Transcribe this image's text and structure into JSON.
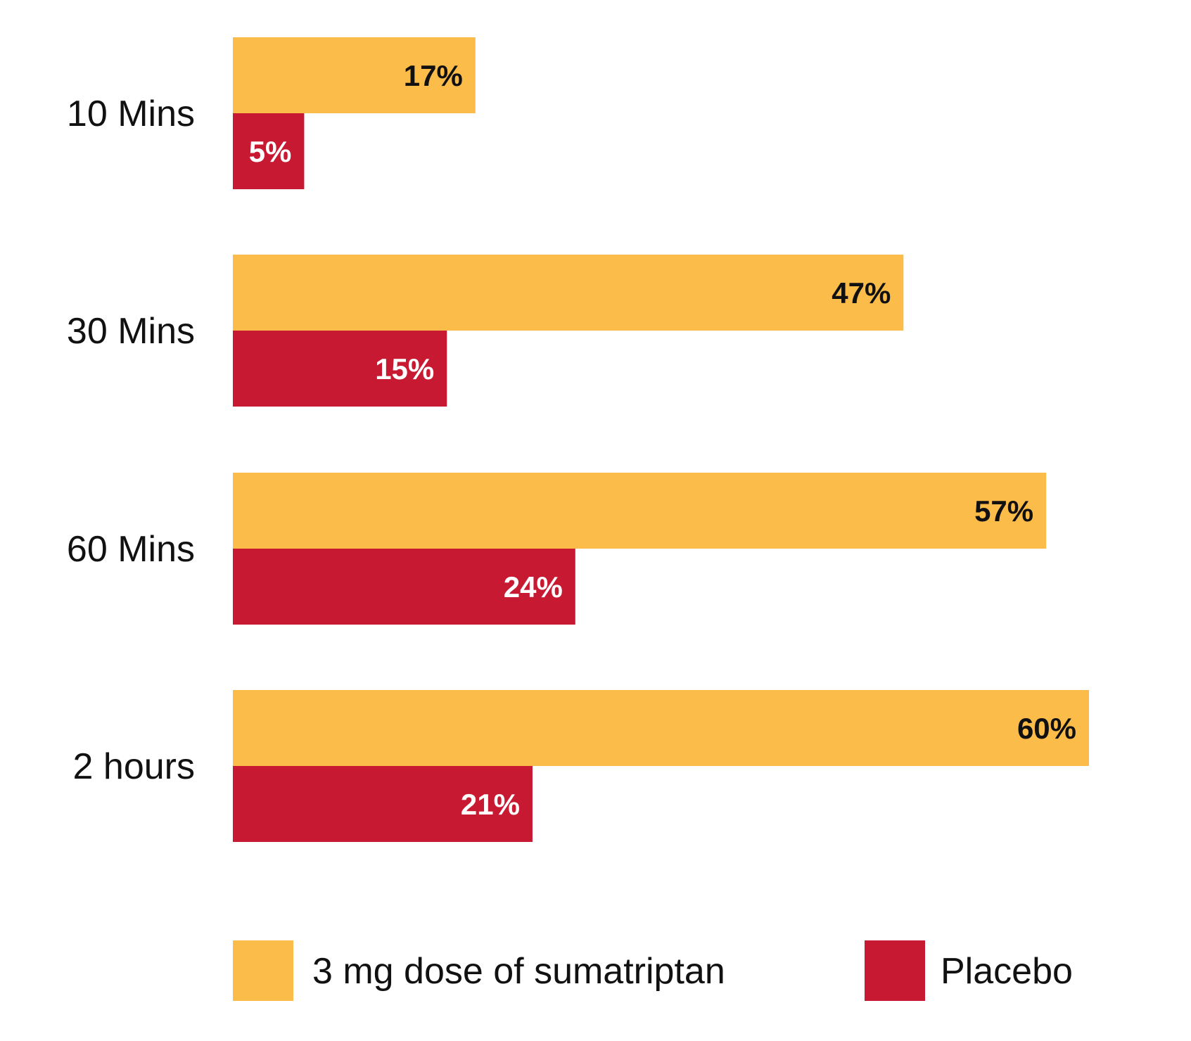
{
  "chart_data": {
    "type": "bar",
    "orientation": "horizontal",
    "categories": [
      "10 Mins",
      "30 Mins",
      "60 Mins",
      "2 hours"
    ],
    "series": [
      {
        "name": "3 mg dose of sumatriptan",
        "values": [
          17,
          47,
          57,
          60
        ],
        "color": "#FBBC4A",
        "label_color": "#111111"
      },
      {
        "name": "Placebo",
        "values": [
          5,
          15,
          24,
          21
        ],
        "color": "#C81932",
        "label_color": "#FFFFFF"
      }
    ],
    "value_labels": [
      [
        "17%",
        "47%",
        "57%",
        "60%"
      ],
      [
        "5%",
        "15%",
        "24%",
        "21%"
      ]
    ],
    "xlim": [
      0,
      60
    ],
    "grid": false,
    "legend_position": "bottom"
  }
}
